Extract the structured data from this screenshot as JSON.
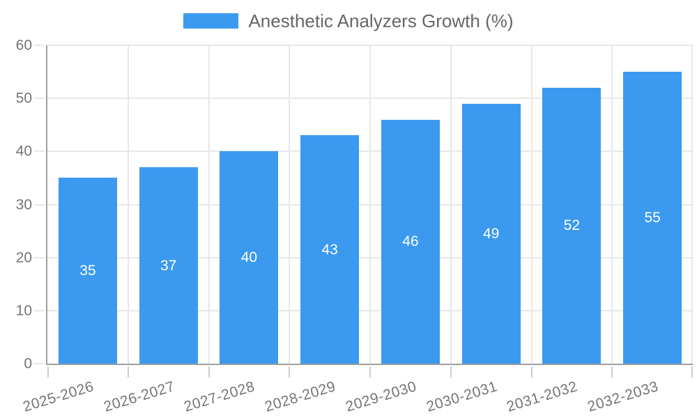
{
  "chart_data": {
    "type": "bar",
    "title": "",
    "legend": "Anesthetic Analyzers Growth (%)",
    "legend_position": "top",
    "categories": [
      "2025-2026",
      "2026-2027",
      "2027-2028",
      "2028-2029",
      "2029-2030",
      "2030-2031",
      "2031-2032",
      "2032-2033"
    ],
    "values": [
      35,
      37,
      40,
      43,
      46,
      49,
      52,
      55
    ],
    "value_labels": [
      "35",
      "37",
      "40",
      "43",
      "46",
      "49",
      "52",
      "55"
    ],
    "xlabel": "",
    "ylabel": "",
    "ylim": [
      0,
      60
    ],
    "yticks": [
      0,
      10,
      20,
      30,
      40,
      50,
      60
    ],
    "grid": true,
    "colors": {
      "bar": "#3B9AEF",
      "value_label": "#FFFFFF",
      "grid": "#E7E7E7",
      "x_tick_mark": "#CCCCCC",
      "axis": "#9E9E9E",
      "tick_label": "#757575",
      "legend_text": "#666666",
      "background": "#FFFFFF"
    }
  }
}
